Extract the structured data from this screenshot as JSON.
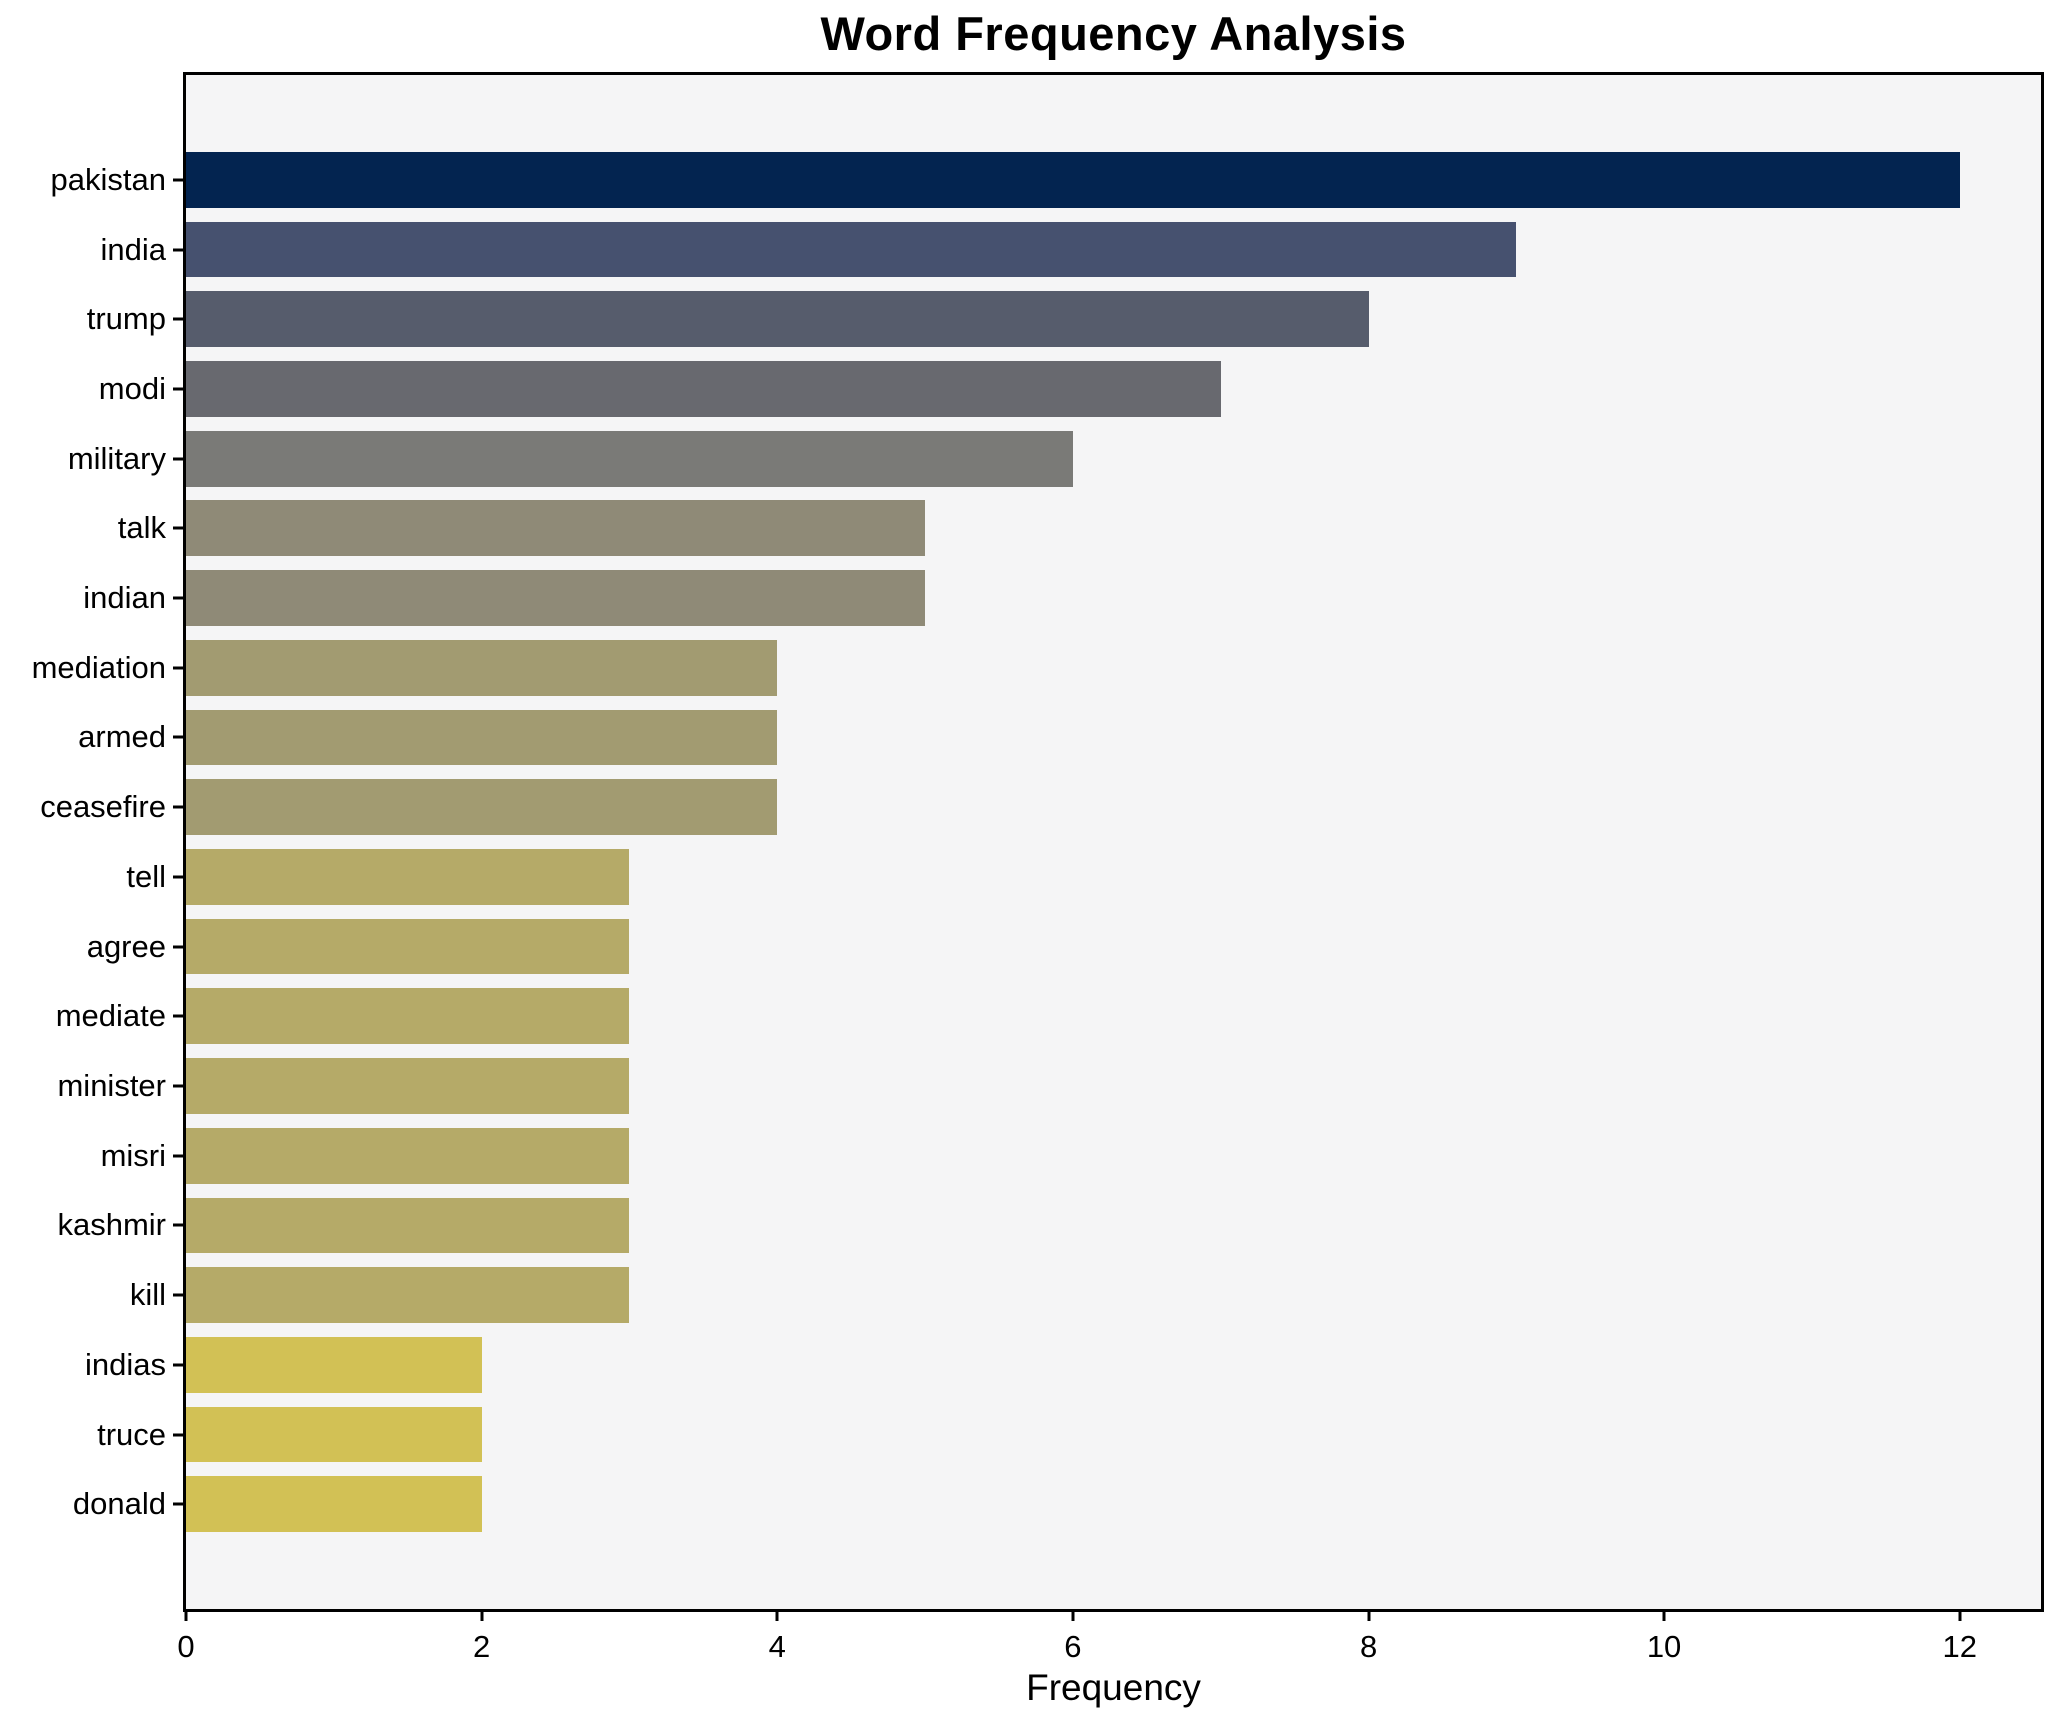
{
  "chart_data": {
    "type": "bar",
    "orientation": "horizontal",
    "title": "Word Frequency Analysis",
    "xlabel": "Frequency",
    "categories": [
      "pakistan",
      "india",
      "trump",
      "modi",
      "military",
      "talk",
      "indian",
      "mediation",
      "armed",
      "ceasefire",
      "tell",
      "agree",
      "mediate",
      "minister",
      "misri",
      "kashmir",
      "kill",
      "indias",
      "truce",
      "donald"
    ],
    "values": [
      12,
      9,
      8,
      7,
      6,
      5,
      5,
      4,
      4,
      4,
      3,
      3,
      3,
      3,
      3,
      3,
      3,
      2,
      2,
      2
    ],
    "bar_colors": [
      "#032450",
      "#46516f",
      "#565c6c",
      "#68696f",
      "#7a7a77",
      "#8f8a77",
      "#8f8a77",
      "#a29b71",
      "#a29b71",
      "#a29b71",
      "#b5aa68",
      "#b5aa68",
      "#b5aa68",
      "#b5aa68",
      "#b5aa68",
      "#b5aa68",
      "#b5aa68",
      "#d2c155",
      "#d2c155",
      "#d2c155"
    ],
    "x_ticks": [
      0,
      2,
      4,
      6,
      8,
      10,
      12
    ],
    "xlim": [
      0,
      12.55
    ],
    "grid": false,
    "plot_background": "#f5f5f6",
    "figure_background": "#ffffff",
    "axis_color": "#000000"
  }
}
